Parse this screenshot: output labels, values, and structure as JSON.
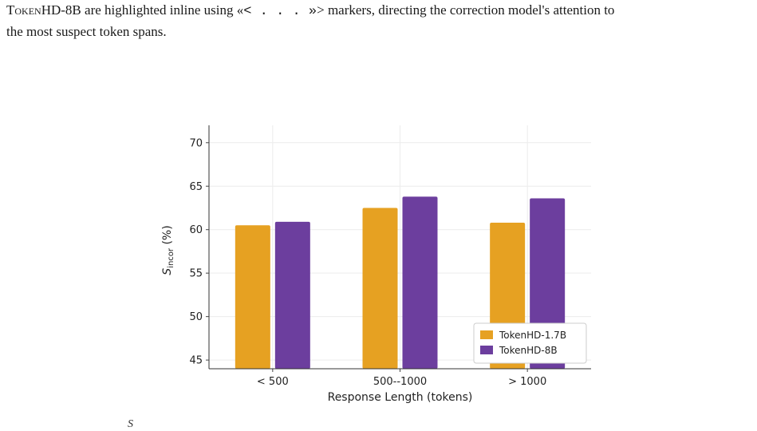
{
  "caption": {
    "line1_prefix": "Token",
    "line1_smallcaps": "HD-8B",
    "line1_mid": " are highlighted inline using «",
    "line1_marker": "< . . . »",
    "line1_suffix": "> markers, directing the correction model's attention to",
    "line2": "the most suspect token spans."
  },
  "bottom_fragment": "S",
  "chart_data": {
    "type": "bar",
    "categories": [
      "< 500",
      "500--1000",
      "> 1000"
    ],
    "series": [
      {
        "name": "TokenHD-1.7B",
        "values": [
          60.5,
          62.5,
          60.8
        ],
        "color": "#E6A122"
      },
      {
        "name": "TokenHD-8B",
        "values": [
          60.9,
          63.8,
          63.6
        ],
        "color": "#6C3E9E"
      }
    ],
    "ylim": [
      44,
      72
    ],
    "yticks": [
      45,
      50,
      55,
      60,
      65,
      70
    ],
    "xlabel": "Response Length (tokens)",
    "ylabel_main": "S",
    "ylabel_sub": "incor",
    "ylabel_unit": " (%)",
    "legend_position": "lower-right",
    "grid": true
  }
}
